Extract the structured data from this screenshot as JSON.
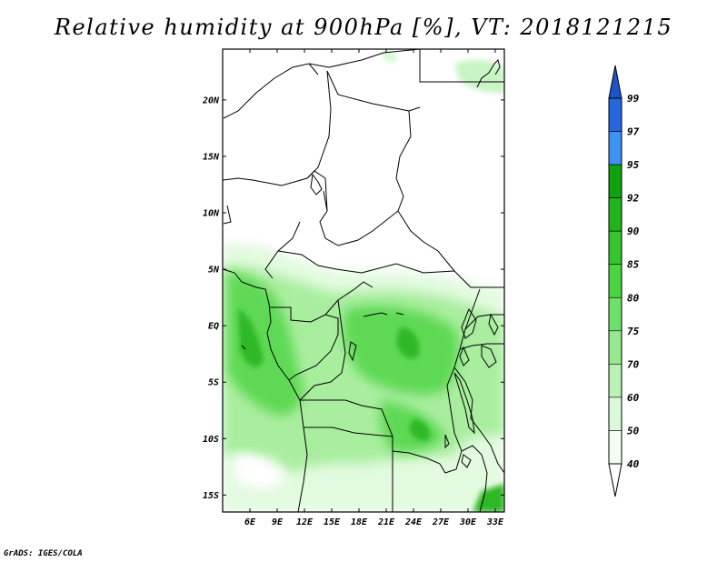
{
  "title": "Relative humidity at 900hPa [%], VT: 2018121215",
  "footer": "GrADS: IGES/COLA",
  "map": {
    "lon_range": [
      3,
      34
    ],
    "lat_range": [
      -16.5,
      24.5
    ],
    "lon_ticks": [
      "6E",
      "9E",
      "12E",
      "15E",
      "18E",
      "21E",
      "24E",
      "27E",
      "30E",
      "33E"
    ],
    "lon_tick_values": [
      6,
      9,
      12,
      15,
      18,
      21,
      24,
      27,
      30,
      33
    ],
    "lat_ticks": [
      "20N",
      "15N",
      "10N",
      "5N",
      "EQ",
      "5S",
      "10S",
      "15S"
    ],
    "lat_tick_values": [
      20,
      15,
      10,
      5,
      0,
      -5,
      -10,
      -15
    ]
  },
  "colorbar": {
    "levels": [
      "99",
      "97",
      "95",
      "92",
      "90",
      "85",
      "80",
      "75",
      "70",
      "60",
      "50",
      "40"
    ],
    "colors": [
      "#1e3ccf",
      "#2766dc",
      "#3d93ef",
      "#10a10f",
      "#21b41c",
      "#35c52e",
      "#4bd443",
      "#6fe069",
      "#95ea90",
      "#b9f3b6",
      "#dbfad9",
      "#f3fdf2"
    ],
    "top_extension_color": "#1e54c8",
    "bottom_extension_color": "#ffffff"
  }
}
